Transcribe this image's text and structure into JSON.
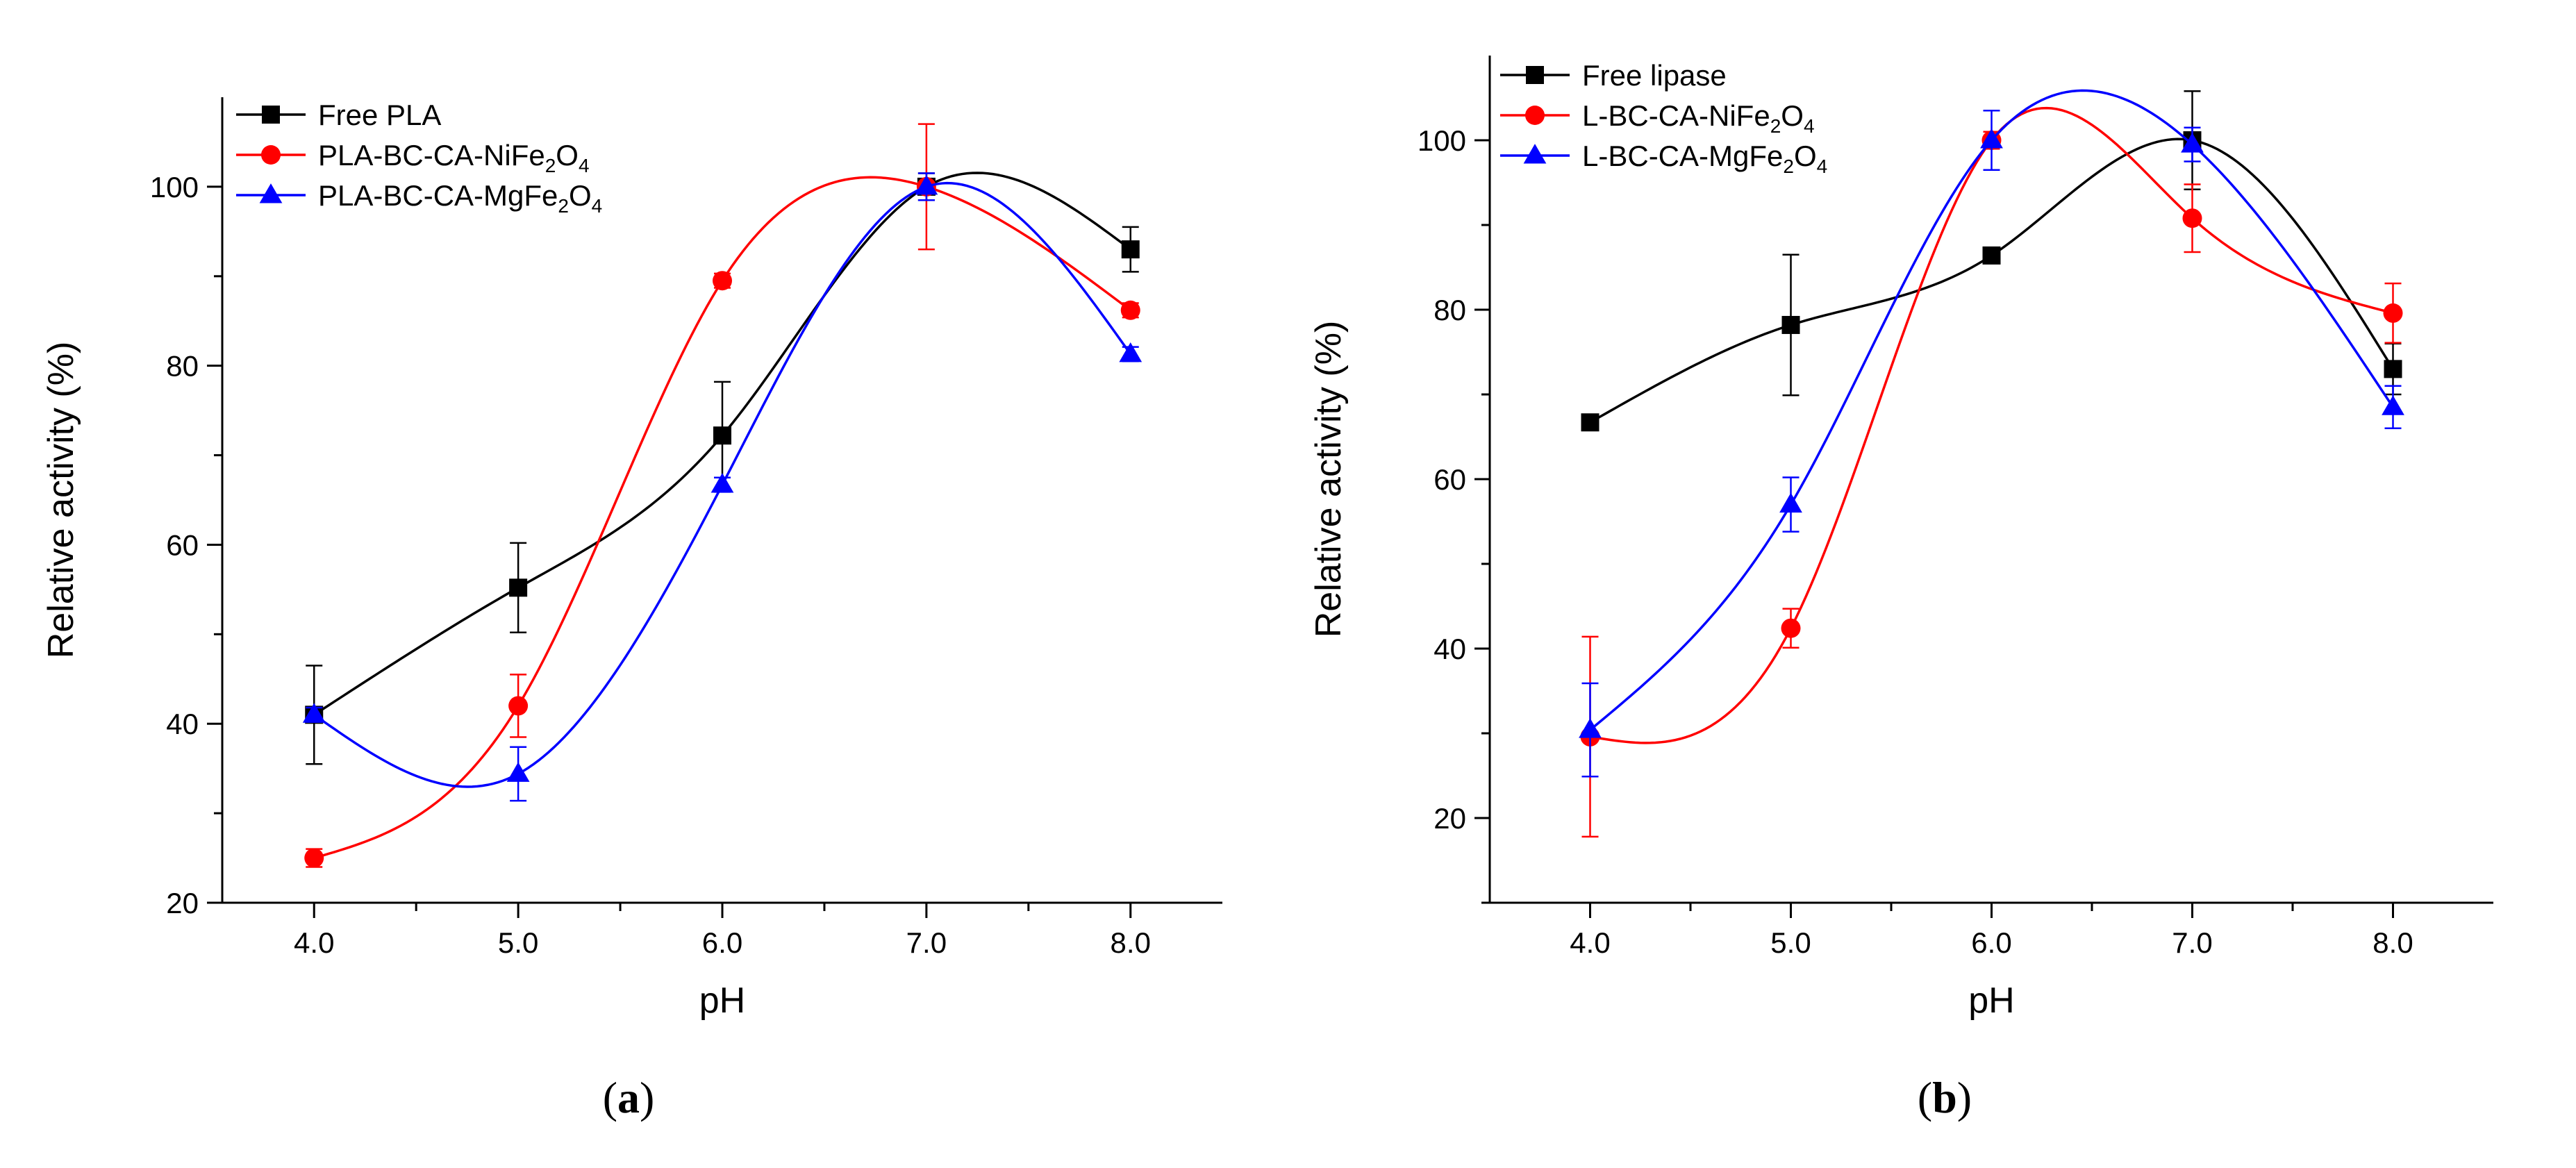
{
  "chart_data": [
    {
      "type": "line",
      "panel_label": "a",
      "xlabel": "pH",
      "ylabel": "Relative activity (%)",
      "x": [
        4.0,
        5.0,
        6.0,
        7.0,
        8.0
      ],
      "xticks": [
        "4.0",
        "5.0",
        "6.0",
        "7.0",
        "8.0"
      ],
      "xlim": [
        3.55,
        8.45
      ],
      "ylim": [
        20,
        110
      ],
      "yticks": [
        20,
        40,
        60,
        80,
        100
      ],
      "grid": false,
      "legend": "top-left",
      "series": [
        {
          "name": "Free PLA",
          "legend_main": "Free PLA",
          "legend_sub": "",
          "legend_tail": "",
          "color": "#000000",
          "marker": "square",
          "values": [
            41.0,
            55.2,
            72.2,
            100.0,
            93.0
          ],
          "errors": [
            5.5,
            5.0,
            6.0,
            1.5,
            2.5
          ]
        },
        {
          "name": "PLA-BC-CA-NiFe2O4",
          "legend_main": "PLA-BC-CA-NiFe",
          "legend_sub": "2",
          "legend_tail": "O",
          "legend_sub2": "4",
          "color": "#ff0000",
          "marker": "circle",
          "values": [
            25.0,
            42.0,
            89.5,
            100.0,
            86.2
          ],
          "errors": [
            1.0,
            3.5,
            0.8,
            7.0,
            0.8
          ]
        },
        {
          "name": "PLA-BC-CA-MgFe2O4",
          "legend_main": "PLA-BC-CA-MgFe",
          "legend_sub": "2",
          "legend_tail": "O",
          "legend_sub2": "4",
          "color": "#0000ff",
          "marker": "triangle",
          "values": [
            41.0,
            34.4,
            66.7,
            100.0,
            81.3
          ],
          "errors": [
            0.8,
            3.0,
            0.8,
            1.5,
            0.8
          ]
        }
      ]
    },
    {
      "type": "line",
      "panel_label": "b",
      "xlabel": "pH",
      "ylabel": "Relative activity (%)",
      "x": [
        4.0,
        5.0,
        6.0,
        7.0,
        8.0
      ],
      "xticks": [
        "4.0",
        "5.0",
        "6.0",
        "7.0",
        "8.0"
      ],
      "xlim": [
        3.5,
        8.5
      ],
      "ylim": [
        10,
        110
      ],
      "yticks": [
        20,
        40,
        60,
        80,
        100
      ],
      "grid": false,
      "legend": "top-left",
      "series": [
        {
          "name": "Free lipase",
          "legend_main": "Free lipase",
          "legend_sub": "",
          "legend_tail": "",
          "color": "#000000",
          "marker": "square",
          "values": [
            66.7,
            78.2,
            86.4,
            100.0,
            73.0
          ],
          "errors": [
            0.5,
            8.3,
            0.8,
            5.8,
            3.0
          ]
        },
        {
          "name": "L-BC-CA-NiFe2O4",
          "legend_main": "L-BC-CA-NiFe",
          "legend_sub": "2",
          "legend_tail": "O",
          "legend_sub2": "4",
          "color": "#ff0000",
          "marker": "circle",
          "values": [
            29.6,
            42.4,
            100.0,
            90.8,
            79.6
          ],
          "errors": [
            11.8,
            2.3,
            1.0,
            4.0,
            3.5
          ]
        },
        {
          "name": "L-BC-CA-MgFe2O4",
          "legend_main": "L-BC-CA-MgFe",
          "legend_sub": "2",
          "legend_tail": "O",
          "legend_sub2": "4",
          "color": "#0000ff",
          "marker": "triangle",
          "values": [
            30.4,
            57.0,
            100.0,
            99.5,
            68.5
          ],
          "errors": [
            5.5,
            3.2,
            3.5,
            2.0,
            2.5
          ]
        }
      ]
    }
  ]
}
